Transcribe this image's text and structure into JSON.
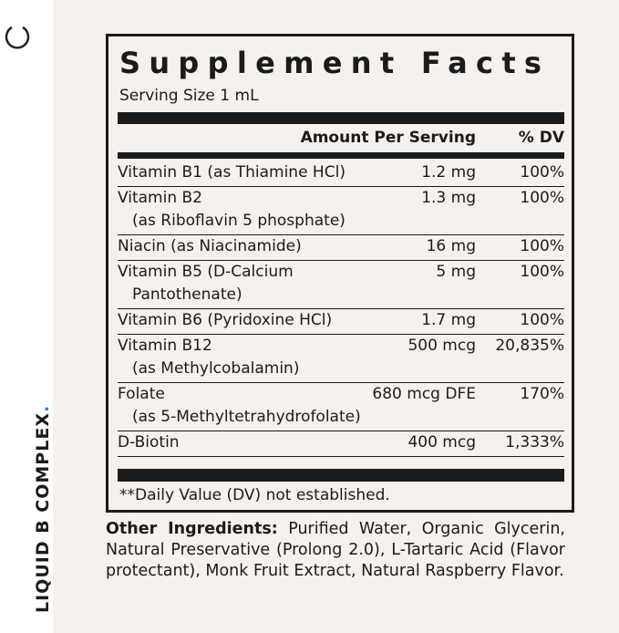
{
  "side_text": "LIQUID B COMPLEX",
  "side_dot": ".",
  "label": {
    "title": "Supplement Facts",
    "serving_size": "Serving Size 1 mL",
    "header": {
      "amount": "Amount Per Serving",
      "dv": "% DV"
    },
    "rows": [
      {
        "name": [
          "Vitamin B1 (as Thiamine HCl)"
        ],
        "amount": "1.2 mg",
        "dv": "100%"
      },
      {
        "name": [
          "Vitamin B2",
          "(as Riboflavin 5 phosphate)"
        ],
        "amount": "1.3 mg",
        "dv": "100%"
      },
      {
        "name": [
          "Niacin (as Niacinamide)"
        ],
        "amount": "16 mg",
        "dv": "100%"
      },
      {
        "name": [
          "Vitamin B5 (D-Calcium",
          "Pantothenate)"
        ],
        "amount": "5 mg",
        "dv": "100%"
      },
      {
        "name": [
          "Vitamin B6 (Pyridoxine HCl)"
        ],
        "amount": "1.7 mg",
        "dv": "100%"
      },
      {
        "name": [
          "Vitamin B12",
          "(as Methylcobalamin)"
        ],
        "amount": "500 mcg",
        "dv": "20,835%"
      },
      {
        "name": [
          "Folate",
          "(as 5-Methyltetrahydrofolate)"
        ],
        "amount": "680 mcg DFE",
        "dv": "170%"
      },
      {
        "name": [
          "D-Biotin"
        ],
        "amount": "400 mcg",
        "dv": "1,333%"
      }
    ],
    "footnote": "**Daily Value (DV) not established."
  },
  "other_ingredients": {
    "label": "Other Ingredients:",
    "text": "Purified Water, Organic Glycerin, Natural Preservative (Prolong 2.0), L-Tartaric Acid (Flavor protectant), Monk Fruit Extract, Natural Raspberry Flavor."
  }
}
